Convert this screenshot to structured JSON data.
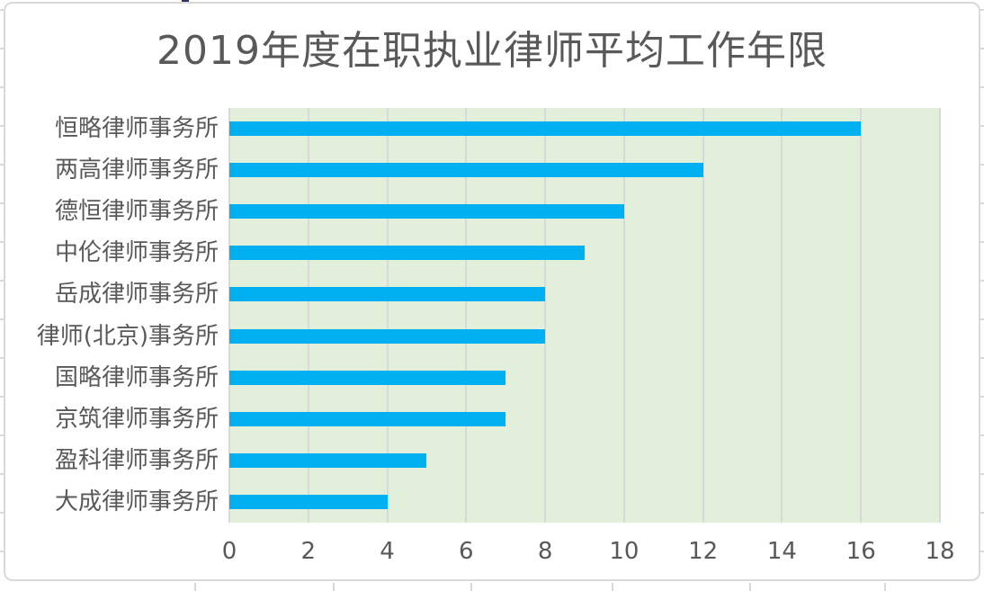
{
  "chart_data": {
    "type": "bar",
    "orientation": "horizontal",
    "title": "2019年度在职执业律师平均工作年限",
    "categories": [
      "恒略律师事务所",
      "两高律师事务所",
      "德恒律师事务所",
      "中伦律师事务所",
      "岳成律师事务所",
      "律师(北京)事务所",
      "国略律师事务所",
      "京筑律师事务所",
      "盈科律师事务所",
      "大成律师事务所"
    ],
    "values": [
      16,
      12,
      10,
      9,
      8,
      8,
      7,
      7,
      5,
      4
    ],
    "xlabel": "",
    "ylabel": "",
    "xlim": [
      0,
      18
    ],
    "x_ticks": [
      0,
      2,
      4,
      6,
      8,
      10,
      12,
      14,
      16,
      18
    ],
    "x_tick_labels": [
      "0",
      "2",
      "4",
      "6",
      "8",
      "10",
      "12",
      "14",
      "16",
      "18"
    ],
    "grid": true,
    "legend": null,
    "colors": {
      "bar": "#00b0f0",
      "plot_background": "#e2efda",
      "gridline": "#d9d9d9",
      "text": "#595959",
      "chart_border": "#d9d9d9"
    }
  }
}
